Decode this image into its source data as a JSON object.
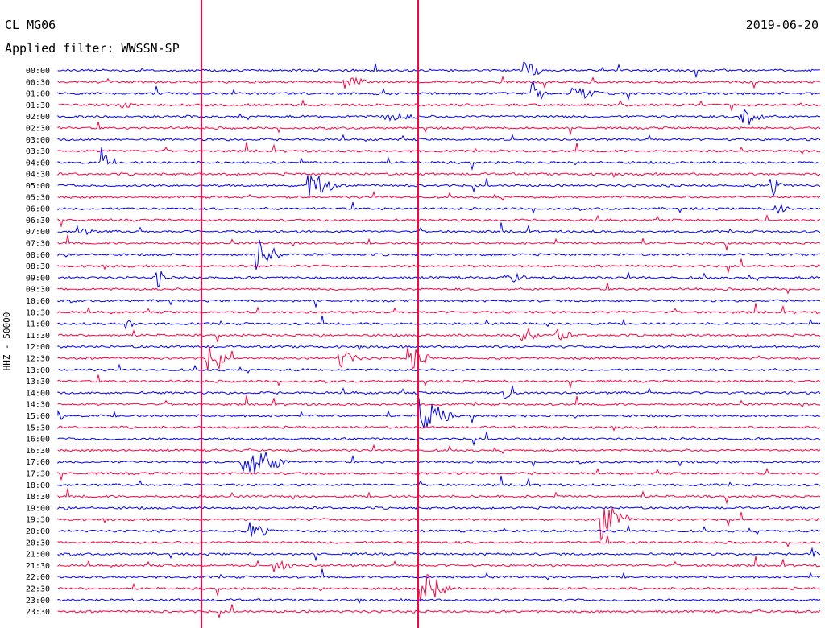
{
  "header": {
    "station": "CL MG06",
    "filter": "Applied filter: WWSSN-SP",
    "date": "2019-06-20"
  },
  "axis": {
    "label": "HHZ - 50000"
  },
  "colors": {
    "trace_a": "#0000ff",
    "trace_b": "#ff0040",
    "marker": "#ff0040",
    "text": "#000000"
  },
  "rows": [
    "00:00",
    "00:30",
    "01:00",
    "01:30",
    "02:00",
    "02:30",
    "03:00",
    "03:30",
    "04:00",
    "04:30",
    "05:00",
    "05:30",
    "06:00",
    "06:30",
    "07:00",
    "07:30",
    "08:00",
    "08:30",
    "09:00",
    "09:30",
    "10:00",
    "10:30",
    "11:00",
    "11:30",
    "12:00",
    "12:30",
    "13:00",
    "13:30",
    "14:00",
    "14:30",
    "15:00",
    "15:30",
    "16:00",
    "16:30",
    "17:00",
    "17:30",
    "18:00",
    "18:30",
    "19:00",
    "19:30",
    "20:00",
    "20:30",
    "21:00",
    "21:30",
    "22:00",
    "22:30",
    "23:00",
    "23:30"
  ]
}
